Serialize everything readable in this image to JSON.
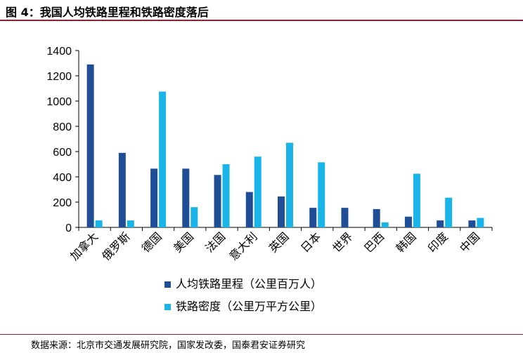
{
  "figure": {
    "title": "图 4：我国人均铁路里程和铁路密度落后",
    "source": "数据来源：北京市交通发展研究院，国家发改委，国泰君安证券研究"
  },
  "chart_data": {
    "type": "bar",
    "title": "",
    "xlabel": "",
    "ylabel": "",
    "ylim": [
      0,
      1400
    ],
    "yticks": [
      0,
      200,
      400,
      600,
      800,
      1000,
      1200,
      1400
    ],
    "grid": false,
    "legend_position": "bottom",
    "categories": [
      "加拿大",
      "俄罗斯",
      "德国",
      "美国",
      "法国",
      "意大利",
      "英国",
      "日本",
      "世界",
      "巴西",
      "韩国",
      "印度",
      "中国"
    ],
    "series": [
      {
        "name": "人均铁路里程（公里百万人）",
        "color": "#1f4e96",
        "values": [
          1290,
          590,
          465,
          465,
          415,
          280,
          245,
          155,
          155,
          145,
          85,
          55,
          55
        ]
      },
      {
        "name": "铁路密度（公里万平方公里）",
        "color": "#19b4e8",
        "values": [
          55,
          55,
          1075,
          160,
          500,
          560,
          670,
          515,
          0,
          40,
          425,
          235,
          75
        ]
      }
    ]
  }
}
